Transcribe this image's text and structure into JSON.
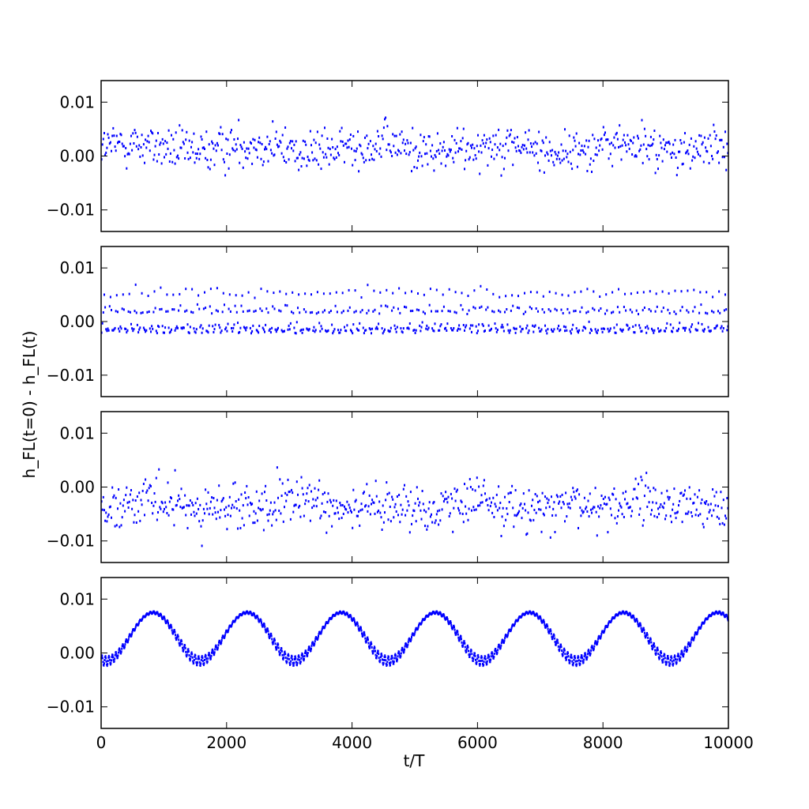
{
  "chart_data": {
    "type": "scatter",
    "ylabel": "h_FL(t=0) - h_FL(t)",
    "xlabel": "t/T",
    "xlim": [
      0,
      10000
    ],
    "ylim": [
      -0.014,
      0.014
    ],
    "xticks": [
      0,
      2000,
      4000,
      6000,
      8000,
      10000
    ],
    "xtick_labels": [
      "0",
      "2000",
      "4000",
      "6000",
      "8000",
      "10000"
    ],
    "yticks": [
      0.01,
      0.0,
      -0.01
    ],
    "ytick_labels": [
      "0.01",
      "0.00",
      "−0.01"
    ],
    "marker_color": "#0000ff",
    "grid": false,
    "shared_x": true,
    "panels": [
      {
        "index": 1,
        "pattern": "noisy scatter about 0",
        "approx_points": 700,
        "y_range": [
          -0.007,
          0.009
        ],
        "y_center": 0.0015
      },
      {
        "index": 2,
        "pattern": "periodic spikes, floor near -0.002",
        "approx_points": 700,
        "y_range": [
          -0.0025,
          0.0062
        ],
        "spike_period_t": 100
      },
      {
        "index": 3,
        "pattern": "noisy scatter, slightly negative mean",
        "approx_points": 700,
        "y_range": [
          -0.0115,
          0.0065
        ],
        "y_center": -0.0035
      },
      {
        "index": 4,
        "pattern": "slow oscillation with small fast ripple",
        "approx_points": 1500,
        "slow_period_t": 1500,
        "y_range": [
          -0.0018,
          0.009
        ],
        "y_center": 0.003
      }
    ]
  }
}
